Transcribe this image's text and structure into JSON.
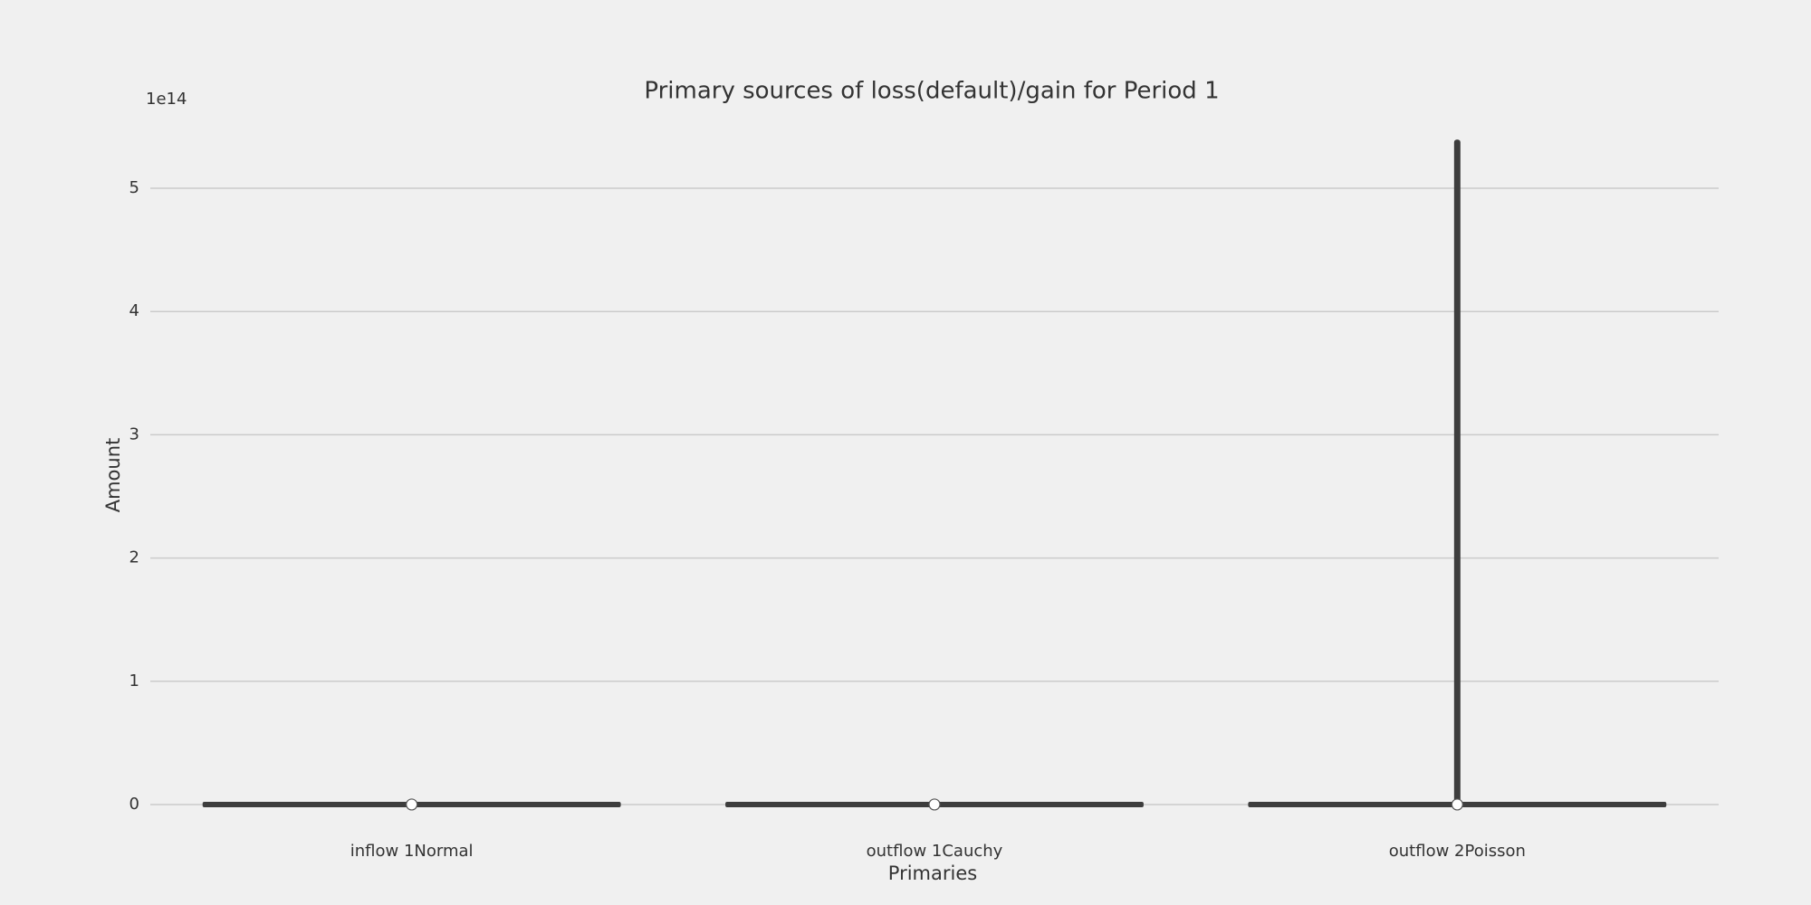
{
  "chart_data": {
    "type": "violin",
    "title": "Primary sources of loss(default)/gain for Period 1",
    "x_label": "Primaries",
    "y_label": "Amount",
    "y_offset_label": "1e14",
    "categories": [
      "inflow 1Normal",
      "outflow 1Cauchy",
      "outflow 2Poisson"
    ],
    "min": [
      0,
      0,
      0
    ],
    "max": [
      0,
      0,
      5.38
    ],
    "median": [
      0,
      0,
      0
    ],
    "color": "#3d3d3d",
    "ylim": [
      -0.25,
      5.65
    ],
    "yticks": [
      0,
      1,
      2,
      3,
      4,
      5
    ],
    "grid": true
  }
}
